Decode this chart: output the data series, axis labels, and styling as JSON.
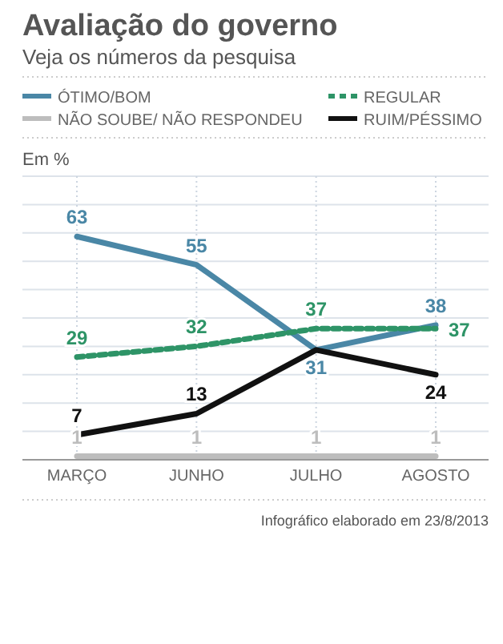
{
  "chart_data": {
    "type": "line",
    "title": "Avaliação do governo",
    "subtitle": "Veja os números da pesquisa",
    "ylabel": "Em %",
    "categories": [
      "MARÇO",
      "JUNHO",
      "JULHO",
      "AGOSTO"
    ],
    "series": [
      {
        "name": "ÓTIMO/BOM",
        "color": "#4a87a6",
        "values": [
          63,
          55,
          31,
          38
        ],
        "value_labels": [
          "63",
          "55",
          "31",
          "38"
        ],
        "line_style": "solid"
      },
      {
        "name": "REGULAR",
        "color": "#2e9467",
        "values": [
          29,
          32,
          37,
          37
        ],
        "value_labels": [
          "29",
          "32",
          "37",
          "37"
        ],
        "line_style": "dashed"
      },
      {
        "name": "NÃO SOUBE/ NÃO RESPONDEU",
        "color": "#bdbdbd",
        "values": [
          1,
          1,
          1,
          1
        ],
        "value_labels": [
          "1",
          "1",
          "1",
          "1"
        ],
        "line_style": "solid"
      },
      {
        "name": "RUIM/PÉSSIMO",
        "color": "#111111",
        "values": [
          7,
          13,
          31,
          24
        ],
        "value_labels": [
          "7",
          "13",
          null,
          "24"
        ],
        "line_style": "solid"
      }
    ],
    "ylim": [
      0,
      80
    ],
    "yticks": [
      {
        "value": 0,
        "label": null
      },
      {
        "value": 8,
        "label": null
      },
      {
        "value": 16,
        "label": null
      },
      {
        "value": 24,
        "label": null
      },
      {
        "value": 32,
        "label": null
      },
      {
        "value": 40,
        "label": null
      },
      {
        "value": 48,
        "label": null
      },
      {
        "value": 56,
        "label": null
      },
      {
        "value": 64,
        "label": null
      },
      {
        "value": 72,
        "label": null
      },
      {
        "value": 80,
        "label": null
      }
    ],
    "grid": true,
    "legend": "top",
    "tick_labels": "x",
    "annotations": [
      "Infográfico elaborado em 23/8/2013"
    ]
  }
}
